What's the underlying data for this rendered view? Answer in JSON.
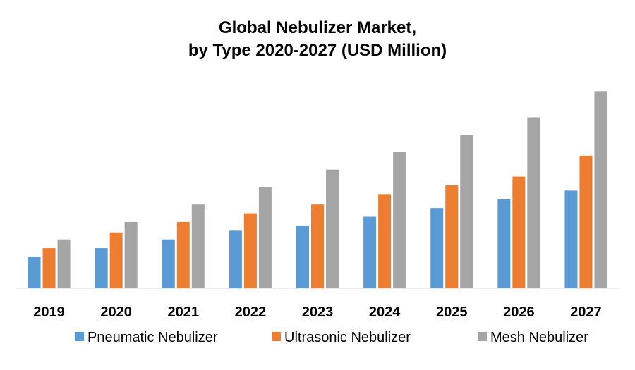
{
  "chart_data": {
    "type": "bar",
    "title": "Global Nebulizer Market,",
    "subtitle": "by Type 2020-2027 (USD Million)",
    "xlabel": "",
    "ylabel": "",
    "categories": [
      "2019",
      "2020",
      "2021",
      "2022",
      "2023",
      "2024",
      "2025",
      "2026",
      "2027"
    ],
    "series": [
      {
        "name": "Pneumatic Nebulizer",
        "color": "#5B9BD5",
        "values": [
          1.8,
          2.3,
          2.8,
          3.3,
          3.6,
          4.1,
          4.6,
          5.1,
          5.6
        ]
      },
      {
        "name": "Ultrasonic Nebulizer",
        "color": "#ED7D31",
        "values": [
          2.3,
          3.2,
          3.8,
          4.3,
          4.8,
          5.4,
          5.9,
          6.4,
          7.6
        ]
      },
      {
        "name": "Mesh Nebulizer",
        "color": "#A5A5A5",
        "values": [
          2.8,
          3.8,
          4.8,
          5.8,
          6.8,
          7.8,
          8.8,
          9.8,
          11.3
        ]
      }
    ],
    "ylim": [
      0,
      12
    ],
    "axes_visible": false,
    "grid": false,
    "legend_position": "bottom"
  }
}
